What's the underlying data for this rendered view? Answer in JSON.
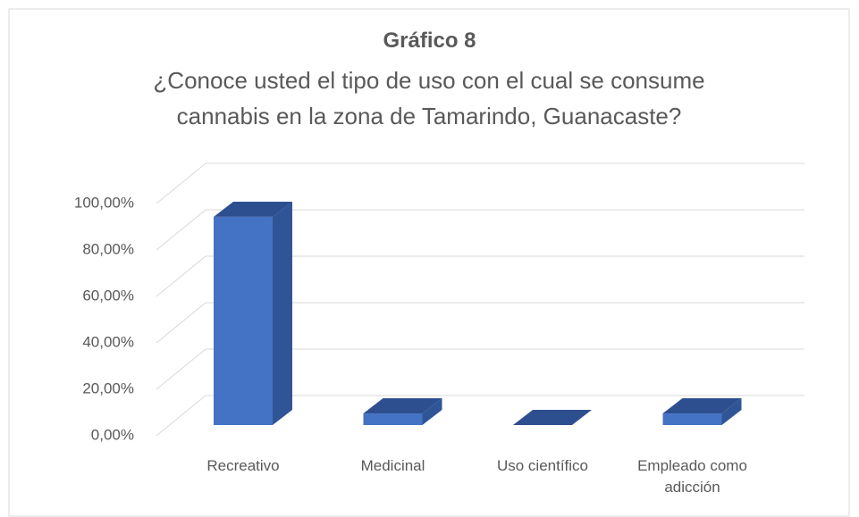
{
  "chart_data": {
    "type": "bar3d",
    "title": "Gráfico 8",
    "subtitle": "¿Conoce usted el tipo de uso con el cual se consume cannabis en la zona de Tamarindo, Guanacaste?",
    "categories": [
      "Recreativo",
      "Medicinal",
      "Uso científico",
      "Empleado como adicción"
    ],
    "values": [
      90,
      5,
      0,
      5
    ],
    "color": "#4472c4",
    "ylim": [
      0,
      100
    ],
    "yticks": [
      {
        "value": 0,
        "label": "0,00%"
      },
      {
        "value": 20,
        "label": "20,00%"
      },
      {
        "value": 40,
        "label": "40,00%"
      },
      {
        "value": 60,
        "label": "60,00%"
      },
      {
        "value": 80,
        "label": "80,00%"
      },
      {
        "value": 100,
        "label": "100,00%"
      }
    ],
    "grid": true
  }
}
